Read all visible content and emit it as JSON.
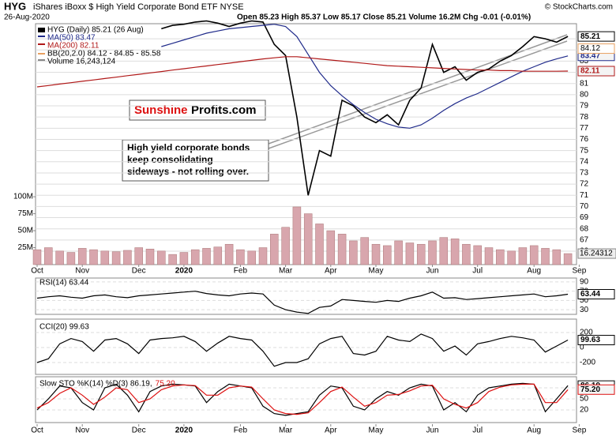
{
  "chart_data": [
    {
      "type": "line",
      "title": "HYG",
      "subtitle": "iShares iBoxx $ High Yield Corporate Bond ETF  NYSE",
      "credit": "© StockCharts.com",
      "date": "26-Aug-2020",
      "quote": "Open 85.23  High 85.37  Low 85.17  Close 85.21  Volume 16.2M  Chg -0.01 (-0.01%)",
      "bb_legend": "BB(20,2.0) 84.12 - 84.85 - 85.58",
      "bb_color": "#e8a060",
      "right_labels": [
        84.12
      ],
      "brand": [
        "Sunshine",
        "Profits.com"
      ],
      "note": [
        "High yield corporate bonds",
        "keep consolidating",
        "sideways - not rolling over."
      ],
      "categories": [
        "Oct",
        null,
        null,
        null,
        "Nov",
        null,
        null,
        null,
        null,
        "Dec",
        null,
        null,
        null,
        "2020",
        null,
        null,
        null,
        null,
        "Feb",
        null,
        null,
        null,
        "Mar",
        null,
        null,
        null,
        "Apr",
        null,
        null,
        null,
        "May",
        null,
        null,
        null,
        null,
        "Jun",
        null,
        null,
        null,
        "Jul",
        null,
        null,
        null,
        null,
        "Aug",
        null,
        null,
        null,
        "Sep"
      ],
      "ylim": [
        64.8,
        86.35
      ],
      "yticks": [
        66,
        67,
        68,
        69,
        70,
        71,
        72,
        73,
        74,
        75,
        76,
        77,
        78,
        79,
        80,
        81,
        82,
        83,
        84,
        85
      ],
      "y2lim": [
        0,
        355000000
      ],
      "y2ticks": [
        {
          "value": 25000000,
          "label": "25M"
        },
        {
          "value": 50000000,
          "label": "50M"
        },
        {
          "value": 75000000,
          "label": "75M"
        },
        {
          "value": 100000000,
          "label": "100M"
        }
      ],
      "volume_tag": {
        "value": 16243124,
        "label": "16.24312"
      },
      "grid": true,
      "series": [
        {
          "name": "HYG (Daily) 85.21 (26 Aug)",
          "color": "#000000",
          "values": [
            null,
            null,
            null,
            null,
            null,
            null,
            null,
            null,
            null,
            null,
            null,
            85.9,
            86.2,
            86.3,
            86.5,
            86.6,
            86.4,
            86.1,
            86.4,
            86.6,
            86.5,
            84.5,
            83.5,
            78,
            71,
            75,
            74.5,
            79.5,
            79,
            78,
            77.5,
            78.2,
            77.3,
            79.5,
            80.6,
            84.5,
            82,
            82.5,
            81.3,
            82,
            82.3,
            83,
            83.5,
            84.3,
            85.2,
            85,
            84.7,
            85.21,
            null
          ]
        },
        {
          "name": "MA(50) 83.47",
          "color": "#1f2a8a",
          "values": [
            null,
            null,
            null,
            null,
            null,
            null,
            null,
            null,
            null,
            null,
            null,
            84.3,
            84.6,
            84.9,
            85.2,
            85.5,
            85.7,
            85.9,
            86.0,
            86.1,
            86.2,
            86.3,
            86.1,
            85.2,
            83.6,
            82.0,
            80.8,
            79.9,
            79.1,
            78.4,
            77.8,
            77.4,
            77.1,
            77.0,
            77.3,
            77.9,
            78.6,
            79.2,
            79.7,
            80.1,
            80.6,
            81.1,
            81.6,
            82.1,
            82.5,
            82.9,
            83.2,
            83.47,
            null
          ]
        },
        {
          "name": "MA(200) 82.11",
          "color": "#b01818",
          "values": [
            80.7,
            80.82,
            80.95,
            81.07,
            81.2,
            81.32,
            81.45,
            81.57,
            81.7,
            81.82,
            81.95,
            82.07,
            82.2,
            82.32,
            82.45,
            82.57,
            82.7,
            82.82,
            82.95,
            83.07,
            83.2,
            83.3,
            83.4,
            83.4,
            83.3,
            83.2,
            83.1,
            83.0,
            82.9,
            82.8,
            82.7,
            82.6,
            82.55,
            82.5,
            82.45,
            82.4,
            82.35,
            82.3,
            82.25,
            82.2,
            82.2,
            82.15,
            82.15,
            82.1,
            82.1,
            82.1,
            82.1,
            82.11,
            null
          ]
        },
        {
          "name": "Volume 16,243,124",
          "color": "#d8a6ad",
          "type": "bar",
          "axis": "y2",
          "values": [
            22000000,
            25000000,
            20000000,
            18000000,
            24000000,
            22000000,
            20000000,
            19000000,
            21000000,
            25000000,
            23000000,
            20000000,
            15000000,
            18000000,
            22000000,
            24000000,
            26000000,
            30000000,
            22000000,
            20000000,
            25000000,
            45000000,
            55000000,
            85000000,
            75000000,
            60000000,
            50000000,
            45000000,
            35000000,
            40000000,
            30000000,
            28000000,
            35000000,
            32000000,
            30000000,
            35000000,
            40000000,
            38000000,
            30000000,
            28000000,
            25000000,
            22000000,
            20000000,
            25000000,
            28000000,
            24000000,
            22000000,
            16243124,
            null
          ]
        }
      ]
    },
    {
      "type": "line",
      "ylim": [
        20,
        95
      ],
      "yticks": [
        30,
        50,
        70,
        90
      ],
      "series": [
        {
          "name": "RSI(14) 63.44",
          "color": "#000000",
          "values": [
            55,
            58,
            60,
            57,
            55,
            60,
            62,
            58,
            56,
            60,
            62,
            64,
            66,
            68,
            70,
            65,
            62,
            60,
            64,
            66,
            64,
            40,
            30,
            25,
            22,
            35,
            38,
            52,
            50,
            48,
            46,
            50,
            48,
            55,
            60,
            68,
            55,
            56,
            52,
            54,
            56,
            58,
            60,
            62,
            64,
            58,
            60,
            63.44,
            null
          ]
        }
      ]
    },
    {
      "type": "line",
      "ylim": [
        -358,
        358
      ],
      "yticks": [
        -200,
        0,
        200
      ],
      "series": [
        {
          "name": "CCI(20) 99.63",
          "color": "#000000",
          "values": [
            -200,
            -150,
            50,
            120,
            80,
            -50,
            100,
            120,
            50,
            -80,
            100,
            120,
            130,
            150,
            80,
            -50,
            60,
            150,
            120,
            100,
            -50,
            -250,
            -200,
            -200,
            -150,
            50,
            120,
            150,
            -80,
            -100,
            -50,
            150,
            100,
            80,
            180,
            120,
            -50,
            20,
            -100,
            50,
            80,
            120,
            150,
            130,
            100,
            -60,
            20,
            99.63,
            null
          ]
        }
      ]
    },
    {
      "type": "line",
      "ylim": [
        -8,
        108
      ],
      "yticks": [
        20,
        50,
        80
      ],
      "series": [
        {
          "name": "Slow STO %K(14) %D(3) 86.19,",
          "color": "#000000",
          "values": [
            20,
            50,
            85,
            80,
            40,
            20,
            80,
            90,
            60,
            15,
            70,
            85,
            90,
            88,
            85,
            40,
            70,
            90,
            85,
            80,
            30,
            10,
            5,
            10,
            15,
            60,
            85,
            80,
            30,
            20,
            50,
            70,
            60,
            80,
            90,
            85,
            20,
            40,
            15,
            60,
            80,
            85,
            90,
            92,
            90,
            15,
            50,
            86.19,
            null
          ]
        },
        {
          "name": "75.20",
          "color": "#dd1111",
          "last_label": "75.20",
          "values": [
            25,
            40,
            65,
            80,
            60,
            35,
            55,
            80,
            75,
            40,
            50,
            75,
            85,
            88,
            86,
            60,
            60,
            80,
            85,
            82,
            50,
            20,
            10,
            8,
            12,
            40,
            70,
            82,
            55,
            30,
            40,
            60,
            62,
            72,
            85,
            87,
            50,
            35,
            25,
            40,
            70,
            82,
            88,
            90,
            90,
            40,
            40,
            75.2,
            null
          ]
        }
      ]
    }
  ]
}
